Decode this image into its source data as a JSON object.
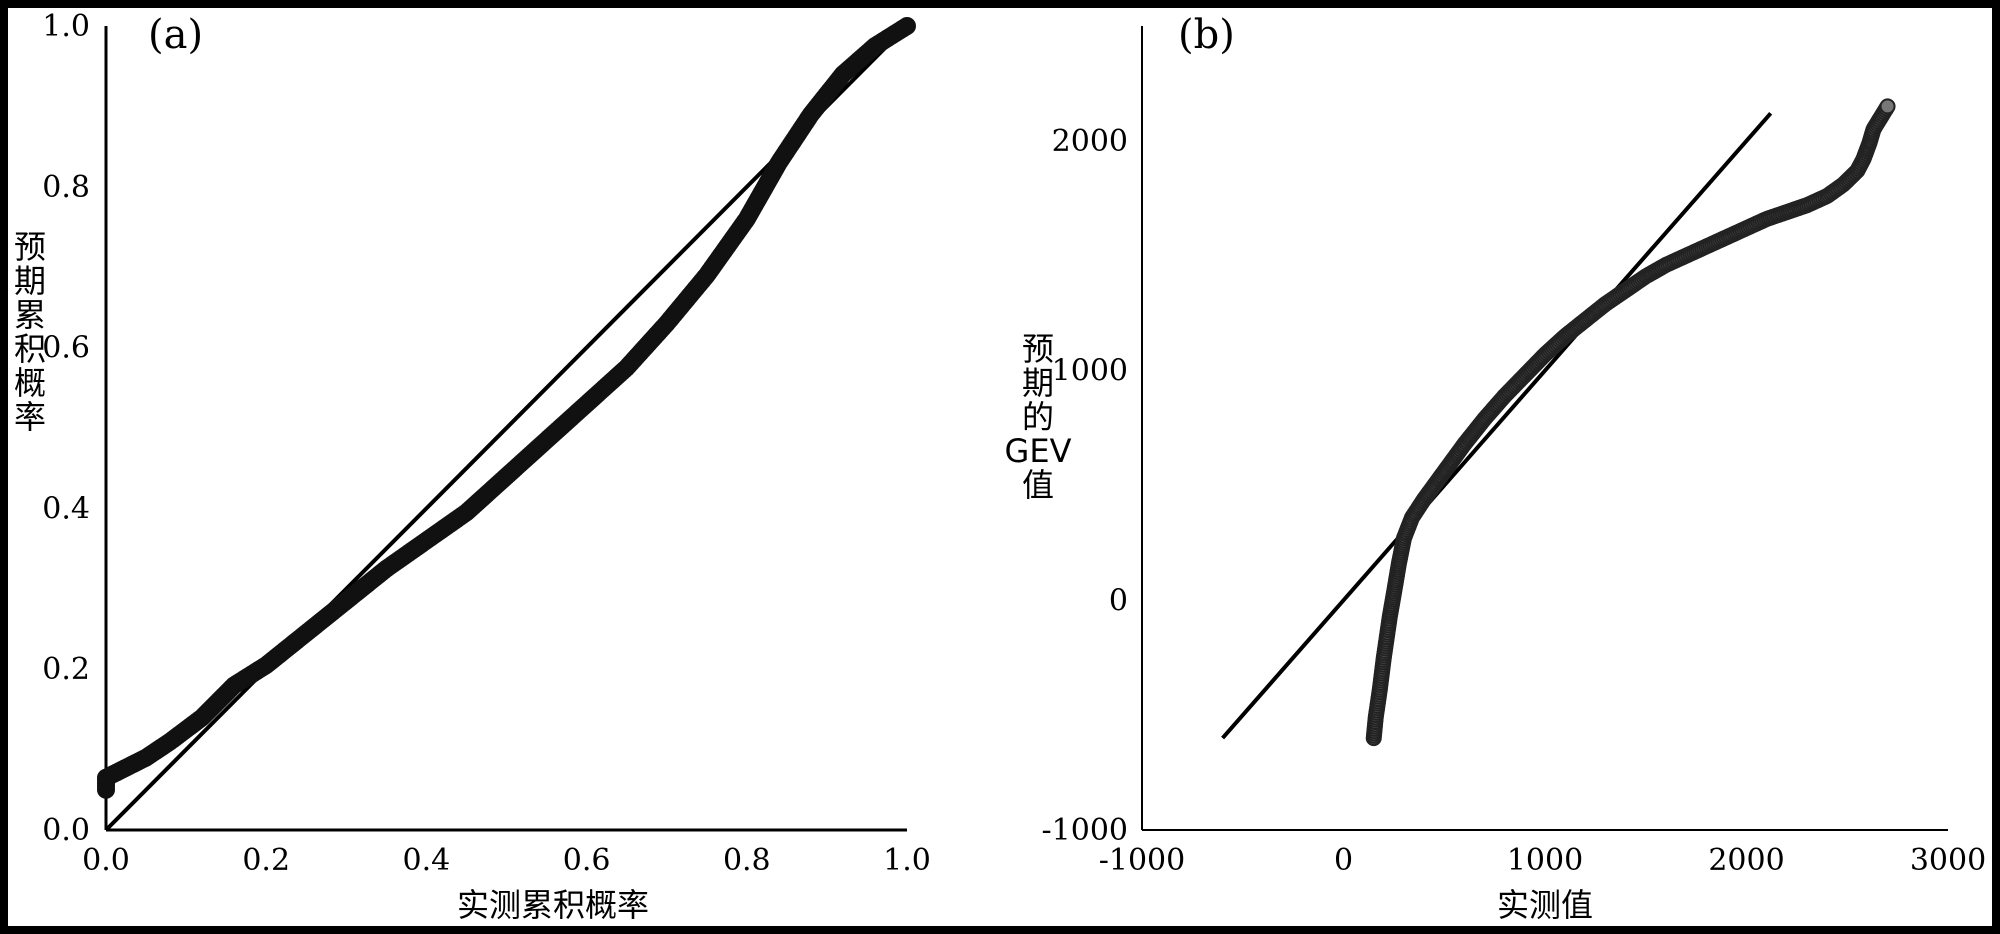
{
  "chart_data": [
    {
      "type": "scatter",
      "panel_label": "(a)",
      "title": "",
      "xlabel": "实测累积概率",
      "ylabel": "预期累积概率",
      "xlim": [
        0.0,
        1.0
      ],
      "ylim": [
        0.0,
        1.0
      ],
      "x_ticks": [
        "0.0",
        "0.2",
        "0.4",
        "0.6",
        "0.8",
        "1.0"
      ],
      "y_ticks": [
        "0.0",
        "0.2",
        "0.4",
        "0.6",
        "0.8",
        "1.0"
      ],
      "grid": false,
      "reference_line": {
        "x": [
          0.0,
          1.0
        ],
        "y": [
          0.0,
          1.0
        ]
      },
      "series": [
        {
          "marker_color": "#111111",
          "points": [
            [
              0.0,
              0.05
            ],
            [
              0.0,
              0.065
            ],
            [
              0.02,
              0.075
            ],
            [
              0.05,
              0.09
            ],
            [
              0.08,
              0.11
            ],
            [
              0.12,
              0.14
            ],
            [
              0.16,
              0.18
            ],
            [
              0.2,
              0.205
            ],
            [
              0.25,
              0.245
            ],
            [
              0.3,
              0.285
            ],
            [
              0.35,
              0.325
            ],
            [
              0.4,
              0.36
            ],
            [
              0.45,
              0.395
            ],
            [
              0.5,
              0.44
            ],
            [
              0.55,
              0.485
            ],
            [
              0.6,
              0.53
            ],
            [
              0.65,
              0.575
            ],
            [
              0.7,
              0.63
            ],
            [
              0.75,
              0.69
            ],
            [
              0.8,
              0.76
            ],
            [
              0.84,
              0.83
            ],
            [
              0.88,
              0.89
            ],
            [
              0.92,
              0.94
            ],
            [
              0.96,
              0.975
            ],
            [
              1.0,
              1.0
            ]
          ]
        }
      ]
    },
    {
      "type": "scatter",
      "panel_label": "(b)",
      "title": "",
      "xlabel": "实测值",
      "ylabel": "预期的GEV值",
      "xlim": [
        -1000,
        3000
      ],
      "ylim": [
        -1000,
        2500
      ],
      "x_ticks": [
        "-1000",
        "0",
        "1000",
        "2000",
        "3000"
      ],
      "y_ticks": [
        "-1000",
        "0",
        "1000",
        "2000"
      ],
      "grid": false,
      "reference_line": {
        "x": [
          -600,
          2120
        ],
        "y": [
          -600,
          2120
        ]
      },
      "series": [
        {
          "marker_color": "#777777",
          "points": [
            [
              150,
              -600
            ],
            [
              160,
              -510
            ],
            [
              170,
              -450
            ],
            [
              180,
              -390
            ],
            [
              190,
              -320
            ],
            [
              200,
              -250
            ],
            [
              215,
              -160
            ],
            [
              230,
              -70
            ],
            [
              250,
              30
            ],
            [
              275,
              160
            ],
            [
              300,
              270
            ],
            [
              340,
              360
            ],
            [
              400,
              440
            ],
            [
              500,
              560
            ],
            [
              600,
              680
            ],
            [
              700,
              790
            ],
            [
              800,
              890
            ],
            [
              900,
              980
            ],
            [
              1000,
              1070
            ],
            [
              1100,
              1150
            ],
            [
              1200,
              1220
            ],
            [
              1300,
              1290
            ],
            [
              1400,
              1350
            ],
            [
              1500,
              1410
            ],
            [
              1600,
              1460
            ],
            [
              1700,
              1500
            ],
            [
              1800,
              1540
            ],
            [
              1900,
              1580
            ],
            [
              2000,
              1620
            ],
            [
              2100,
              1660
            ],
            [
              2200,
              1690
            ],
            [
              2300,
              1720
            ],
            [
              2400,
              1760
            ],
            [
              2480,
              1810
            ],
            [
              2550,
              1870
            ],
            [
              2580,
              1920
            ],
            [
              2610,
              1990
            ],
            [
              2630,
              2050
            ],
            [
              2700,
              2150
            ]
          ]
        }
      ]
    }
  ]
}
